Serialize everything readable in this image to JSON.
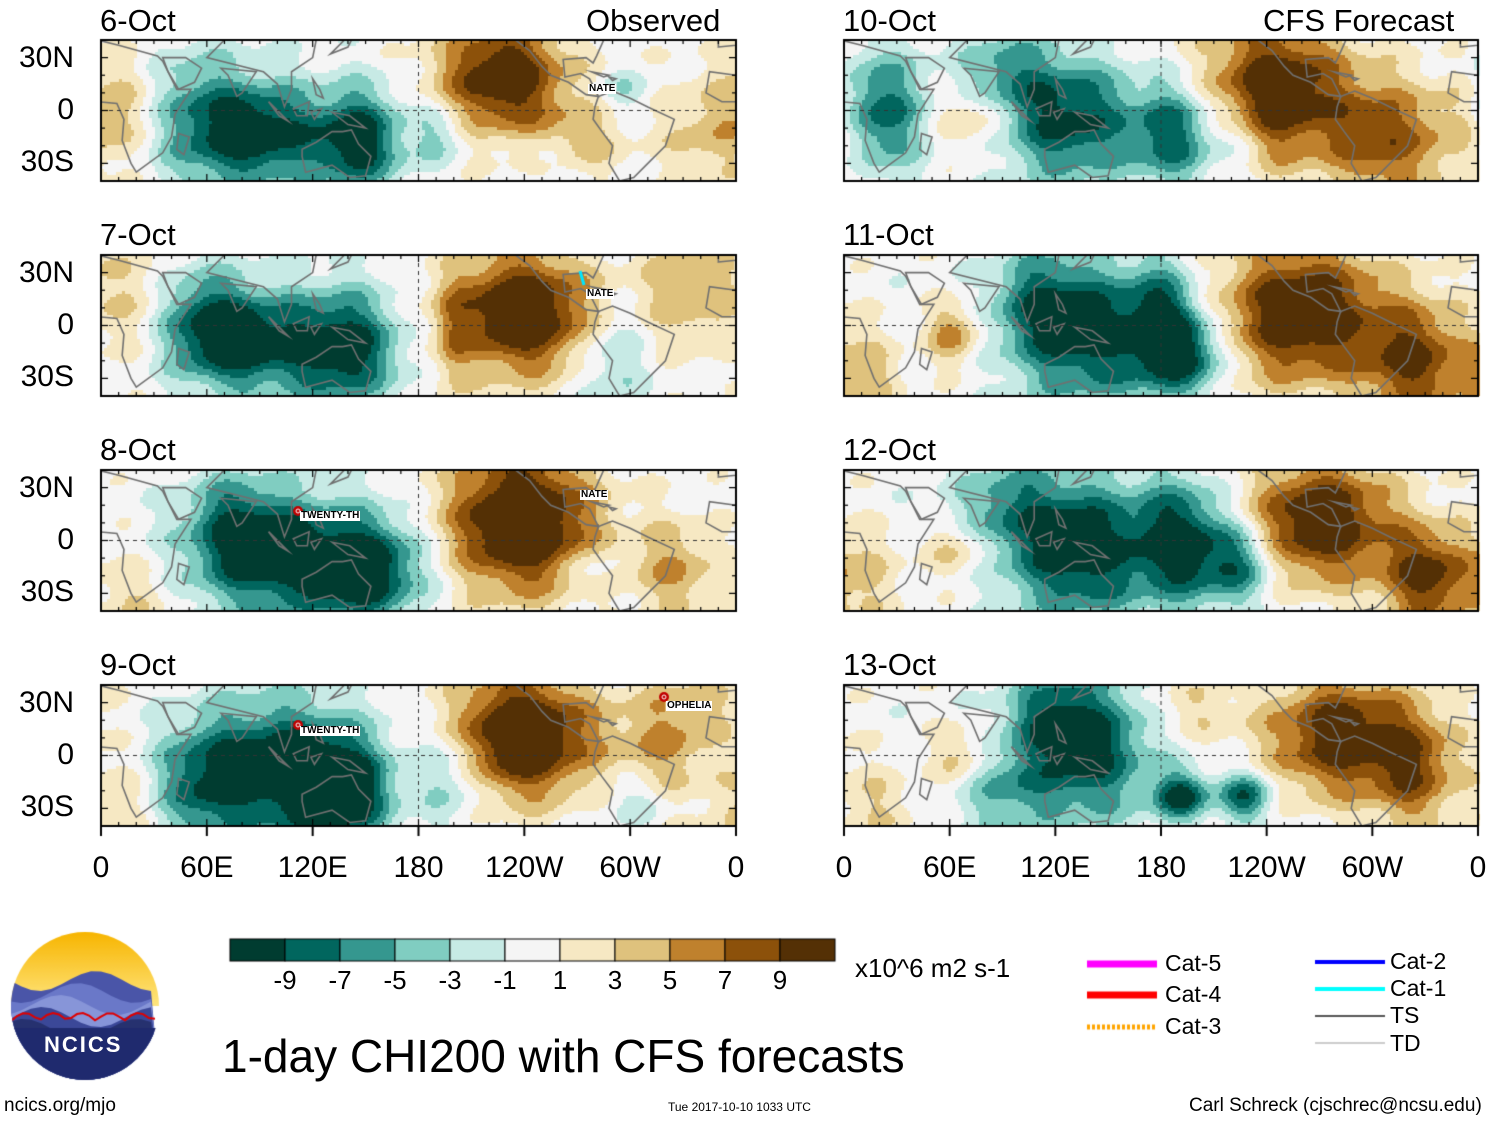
{
  "header": {
    "observed_label": "Observed",
    "forecast_label": "CFS Forecast"
  },
  "panels": {
    "observed": [
      {
        "date": "6-Oct"
      },
      {
        "date": "7-Oct"
      },
      {
        "date": "8-Oct"
      },
      {
        "date": "9-Oct"
      }
    ],
    "forecast": [
      {
        "date": "10-Oct"
      },
      {
        "date": "11-Oct"
      },
      {
        "date": "12-Oct"
      },
      {
        "date": "13-Oct"
      }
    ]
  },
  "axes": {
    "lat_ticks": [
      "30N",
      "0",
      "30S"
    ],
    "lon_ticks": [
      "0",
      "60E",
      "120E",
      "180",
      "120W",
      "60W",
      "0"
    ]
  },
  "storms": [
    {
      "name": "NATE",
      "panel": "7-Oct"
    },
    {
      "name": "NATE",
      "panel": "8-Oct"
    },
    {
      "name": "NATE",
      "panel": "6-Oct"
    },
    {
      "name": "TWENTY-TH",
      "panel": "8-Oct"
    },
    {
      "name": "TWENTY-TH",
      "panel": "9-Oct"
    },
    {
      "name": "OPHELIA",
      "panel": "9-Oct"
    }
  ],
  "colorbar": {
    "labels": [
      "-9",
      "-7",
      "-5",
      "-3",
      "-1",
      "1",
      "3",
      "5",
      "7",
      "9"
    ],
    "colors": [
      "#003c30",
      "#01665e",
      "#35978f",
      "#80cdc1",
      "#c7eae5",
      "#f5f5f5",
      "#f6e8c3",
      "#dfc27d",
      "#bf812d",
      "#8c510a",
      "#543005"
    ],
    "units": "x10^6 m2 s-1"
  },
  "legend": {
    "items": [
      {
        "label": "Cat-5",
        "color": "#ff00ff"
      },
      {
        "label": "Cat-4",
        "color": "#ff0000"
      },
      {
        "label": "Cat-3",
        "color": "#ffa500"
      },
      {
        "label": "Cat-2",
        "color": "#0000ff"
      },
      {
        "label": "Cat-1",
        "color": "#00ffff"
      },
      {
        "label": "TS",
        "color": "#555555"
      },
      {
        "label": "TD",
        "color": "#999999"
      }
    ]
  },
  "footer": {
    "title": "1-day CHI200 with CFS forecasts",
    "site": "ncics.org/mjo",
    "timestamp": "Tue 2017-10-10 1033 UTC",
    "author": "Carl Schreck (cjschrec@ncsu.edu)",
    "logo_text": "NCICS"
  }
}
